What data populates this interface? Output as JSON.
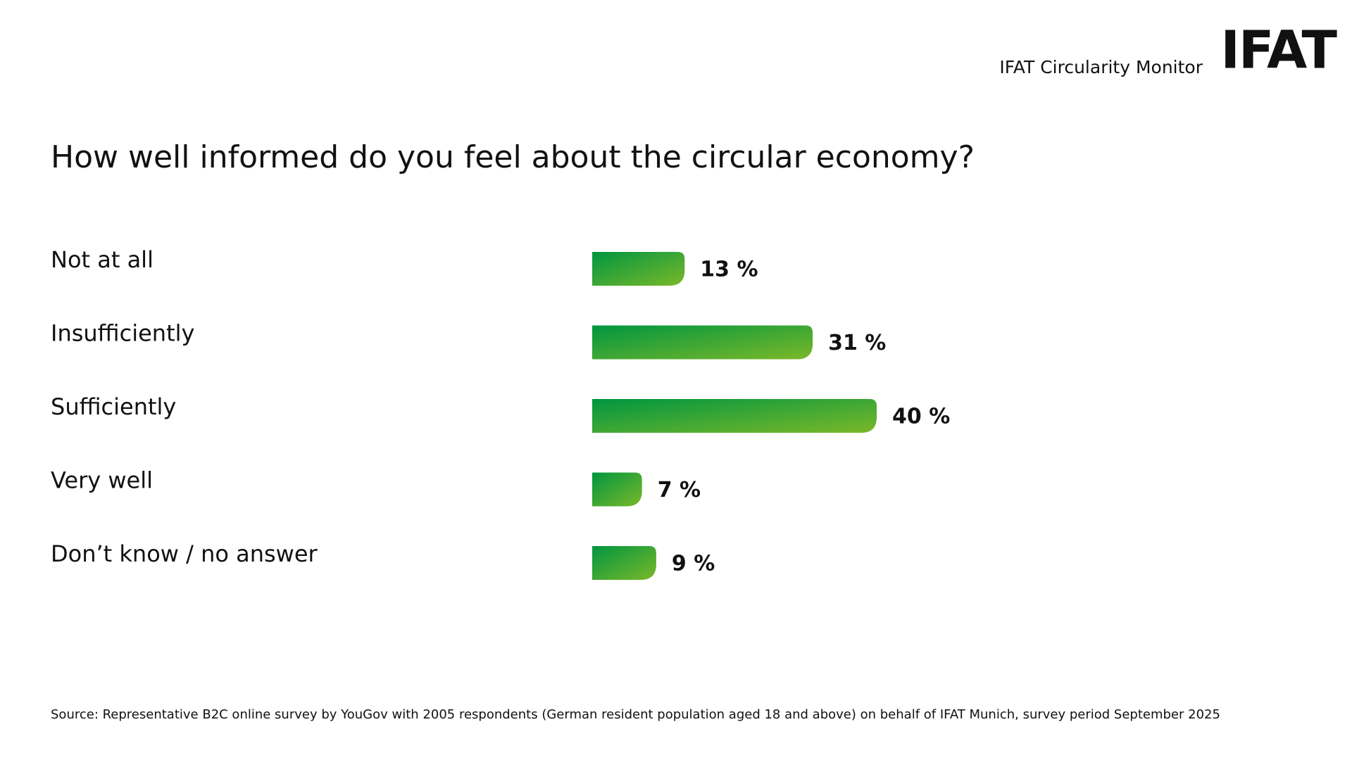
{
  "header": {
    "text": "IFAT Circularity Monitor",
    "logo": "IFAT"
  },
  "chart_data": {
    "type": "bar",
    "orientation": "horizontal",
    "title": "How well informed do you feel about the circular economy?",
    "categories": [
      "Not at all",
      "Insufficiently",
      "Sufficiently",
      "Very well",
      "Don’t know / no answer"
    ],
    "values": [
      13,
      31,
      40,
      7,
      9
    ],
    "value_labels": [
      "13 %",
      "31 %",
      "40 %",
      "7 %",
      "9 %"
    ],
    "color": [
      "#009640",
      "#7ab829"
    ]
  },
  "footer": {
    "source": "Source: Representative B2C online survey by YouGov with 2005 respondents (German resident population aged 18 and above) on behalf of IFAT Munich, survey period September 2025"
  }
}
